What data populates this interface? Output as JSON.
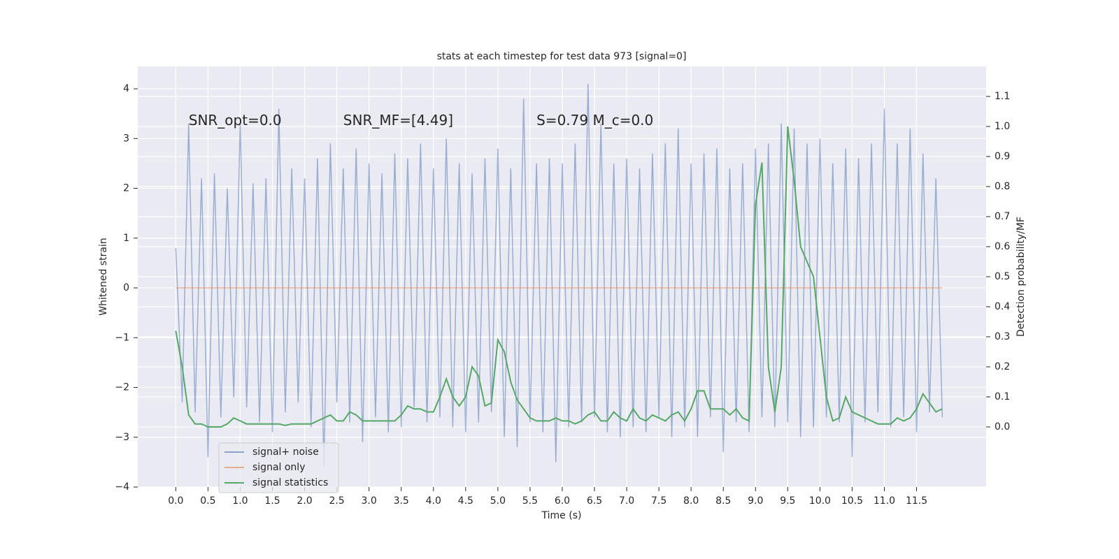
{
  "chart_data": {
    "type": "line",
    "title": "stats at each timestep for test data 973 [signal=0]",
    "xlabel": "Time (s)",
    "ylabel": "Whitened strain",
    "y2label": "Detection probability/MF",
    "annotations": [
      "SNR_opt=0.0",
      "SNR_MF=[4.49]",
      "S=0.79   M_c=0.0"
    ],
    "x": [
      0,
      0.1,
      0.2,
      0.3,
      0.4,
      0.5,
      0.6,
      0.7,
      0.8,
      0.9,
      1,
      1.1,
      1.2,
      1.3,
      1.4,
      1.5,
      1.6,
      1.7,
      1.8,
      1.9,
      2,
      2.1,
      2.2,
      2.3,
      2.4,
      2.5,
      2.6,
      2.7,
      2.8,
      2.9,
      3,
      3.1,
      3.2,
      3.3,
      3.4,
      3.5,
      3.6,
      3.7,
      3.8,
      3.9,
      4,
      4.1,
      4.2,
      4.3,
      4.4,
      4.5,
      4.6,
      4.7,
      4.8,
      4.9,
      5,
      5.1,
      5.2,
      5.3,
      5.4,
      5.5,
      5.6,
      5.7,
      5.8,
      5.9,
      6,
      6.1,
      6.2,
      6.3,
      6.4,
      6.5,
      6.6,
      6.7,
      6.8,
      6.9,
      7,
      7.1,
      7.2,
      7.3,
      7.4,
      7.5,
      7.6,
      7.7,
      7.8,
      7.9,
      8,
      8.1,
      8.2,
      8.3,
      8.4,
      8.5,
      8.6,
      8.7,
      8.8,
      8.9,
      9,
      9.1,
      9.2,
      9.3,
      9.4,
      9.5,
      9.6,
      9.7,
      9.8,
      9.9,
      10,
      10.1,
      10.2,
      10.3,
      10.4,
      10.5,
      10.6,
      10.7,
      10.8,
      10.9,
      11,
      11.1,
      11.2,
      11.3,
      11.4,
      11.5,
      11.6,
      11.7,
      11.8,
      11.9
    ],
    "series": [
      {
        "name": "signal+ noise",
        "color": "#4c72b0",
        "axis": "y",
        "values": [
          0.8,
          -2.3,
          3.3,
          -2.5,
          2.2,
          -3.4,
          2.3,
          -2.6,
          2.0,
          -2.2,
          3.3,
          -2.4,
          2.1,
          -2.7,
          2.2,
          -2.9,
          3.6,
          -2.5,
          2.4,
          -2.3,
          2.2,
          -2.8,
          2.6,
          -3.6,
          2.9,
          -2.3,
          2.4,
          -2.7,
          2.8,
          -3.1,
          2.5,
          -2.6,
          2.3,
          -2.9,
          2.7,
          -2.8,
          2.6,
          -2.4,
          2.9,
          -2.7,
          2.4,
          -2.6,
          3.0,
          -2.8,
          2.5,
          -2.9,
          2.3,
          -2.7,
          2.6,
          -2.5,
          2.8,
          -3.0,
          2.4,
          -3.2,
          3.8,
          -2.7,
          2.5,
          -2.9,
          2.6,
          -3.5,
          2.5,
          -2.8,
          2.9,
          -2.7,
          4.1,
          -2.6,
          3.3,
          -2.9,
          2.5,
          -3.0,
          2.6,
          -2.8,
          2.4,
          -2.9,
          2.7,
          -2.6,
          2.9,
          -3.0,
          3.2,
          -2.8,
          2.5,
          -3.0,
          2.7,
          -2.6,
          2.8,
          -3.3,
          2.4,
          -2.7,
          2.5,
          -2.9,
          2.8,
          -2.6,
          2.9,
          -2.8,
          3.3,
          -2.7,
          3.2,
          -3.0,
          2.9,
          -2.8,
          3.0,
          -2.6,
          2.5,
          -2.7,
          2.8,
          -3.4,
          2.6,
          -2.7,
          2.9,
          -2.5,
          3.6,
          -2.8,
          2.9,
          -2.6,
          3.2,
          -2.9,
          2.7,
          -2.5,
          2.2,
          -2.6
        ]
      },
      {
        "name": "signal only",
        "color": "#dd8452",
        "axis": "y",
        "values": [
          0,
          0,
          0,
          0,
          0,
          0,
          0,
          0,
          0,
          0,
          0,
          0,
          0,
          0,
          0,
          0,
          0,
          0,
          0,
          0,
          0,
          0,
          0,
          0,
          0,
          0,
          0,
          0,
          0,
          0,
          0,
          0,
          0,
          0,
          0,
          0,
          0,
          0,
          0,
          0,
          0,
          0,
          0,
          0,
          0,
          0,
          0,
          0,
          0,
          0,
          0,
          0,
          0,
          0,
          0,
          0,
          0,
          0,
          0,
          0,
          0,
          0,
          0,
          0,
          0,
          0,
          0,
          0,
          0,
          0,
          0,
          0,
          0,
          0,
          0,
          0,
          0,
          0,
          0,
          0,
          0,
          0,
          0,
          0,
          0,
          0,
          0,
          0,
          0,
          0,
          0,
          0,
          0,
          0,
          0,
          0,
          0,
          0,
          0,
          0,
          0,
          0,
          0,
          0,
          0,
          0,
          0,
          0,
          0,
          0,
          0,
          0,
          0,
          0,
          0,
          0,
          0,
          0,
          0,
          0
        ]
      },
      {
        "name": "signal statistics",
        "color": "#55a868",
        "axis": "y2",
        "values": [
          0.32,
          0.2,
          0.04,
          0.01,
          0.01,
          0,
          0,
          0,
          0.01,
          0.03,
          0.02,
          0.01,
          0.01,
          0.01,
          0.01,
          0.01,
          0.01,
          0.005,
          0.01,
          0.01,
          0.01,
          0.01,
          0.02,
          0.03,
          0.04,
          0.02,
          0.02,
          0.05,
          0.04,
          0.02,
          0.02,
          0.02,
          0.02,
          0.02,
          0.02,
          0.04,
          0.07,
          0.06,
          0.06,
          0.05,
          0.05,
          0.1,
          0.16,
          0.1,
          0.07,
          0.1,
          0.2,
          0.17,
          0.07,
          0.08,
          0.29,
          0.25,
          0.15,
          0.09,
          0.06,
          0.03,
          0.02,
          0.02,
          0.02,
          0.03,
          0.02,
          0.02,
          0.01,
          0.02,
          0.04,
          0.05,
          0.02,
          0.02,
          0.05,
          0.03,
          0.02,
          0.06,
          0.03,
          0.02,
          0.04,
          0.03,
          0.02,
          0.04,
          0.05,
          0.02,
          0.06,
          0.12,
          0.12,
          0.06,
          0.06,
          0.06,
          0.04,
          0.06,
          0.03,
          0.02,
          0.74,
          0.88,
          0.2,
          0.05,
          0.2,
          1.0,
          0.82,
          0.6,
          0.55,
          0.5,
          0.3,
          0.1,
          0.02,
          0.03,
          0.1,
          0.05,
          0.04,
          0.03,
          0.02,
          0.01,
          0.01,
          0.01,
          0.03,
          0.02,
          0.03,
          0.06,
          0.11,
          0.08,
          0.05,
          0.06
        ]
      }
    ],
    "xlim": [
      -0.59,
      12.58
    ],
    "ylim": [
      -4,
      4.45
    ],
    "y2lim": [
      -0.2,
      1.2
    ],
    "xticks": [
      {
        "value": 0,
        "label": "0.0"
      },
      0.5,
      {
        "value": 1,
        "label": "1.0"
      },
      1.5,
      {
        "value": 2,
        "label": "2.0"
      },
      2.5,
      {
        "value": 3,
        "label": "3.0"
      },
      3.5,
      {
        "value": 4,
        "label": "4.0"
      },
      4.5,
      {
        "value": 5,
        "label": "5.0"
      },
      5.5,
      {
        "value": 6,
        "label": "6.0"
      },
      6.5,
      {
        "value": 7,
        "label": "7.0"
      },
      7.5,
      {
        "value": 8,
        "label": "8.0"
      },
      8.5,
      {
        "value": 9,
        "label": "9.0"
      },
      9.5,
      {
        "value": 10,
        "label": "10.0"
      },
      10.5,
      {
        "value": 11,
        "label": "11.0"
      },
      11.5
    ],
    "yticks": [
      {
        "value": -4,
        "label": "−4"
      },
      {
        "value": -3,
        "label": "−3"
      },
      {
        "value": -2,
        "label": "−2"
      },
      {
        "value": -1,
        "label": "−1"
      },
      0,
      1,
      2,
      3,
      4
    ],
    "y2ticks": [
      {
        "value": 0,
        "label": "0.0"
      },
      0.1,
      0.2,
      0.3,
      0.4,
      0.5,
      0.6,
      0.7,
      0.8,
      0.9,
      {
        "value": 1,
        "label": "1.0"
      },
      1.1
    ],
    "grid": true,
    "legend": "lower left"
  }
}
